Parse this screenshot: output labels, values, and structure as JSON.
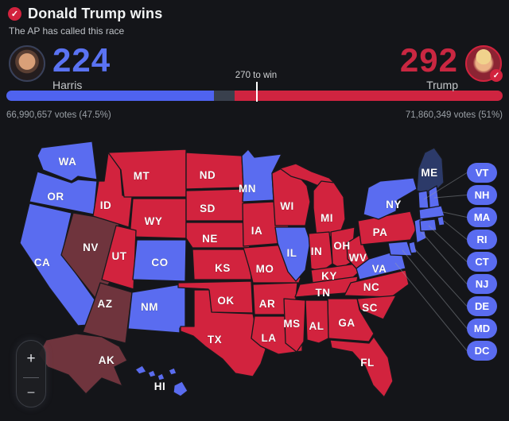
{
  "colors": {
    "background": "#141519",
    "dem": "#5a6cf0",
    "rep": "#d2233e",
    "lean_rep": "#6f343d",
    "lean_dem": "#2c3a69",
    "dem_number": "#5a73f3",
    "rep_number": "#c92741",
    "bar_dem": "#4f63ef",
    "bar_rep": "#cf2440",
    "bar_undecided": "#39404d"
  },
  "header": {
    "title": "Donald Trump wins",
    "subtitle": "The AP has called this race",
    "called_icon": "checkmark"
  },
  "scoreboard": {
    "harris": {
      "name": "Harris",
      "electoral_votes": "224",
      "votes": "66,990,657 votes (47.5%)"
    },
    "trump": {
      "name": "Trump",
      "electoral_votes": "292",
      "votes": "71,860,349 votes (51%)"
    },
    "threshold": {
      "label": "270 to win",
      "marker_pct": 50.3
    },
    "bar": {
      "dem_pct": 41.8,
      "undecided_pct": 4.2
    }
  },
  "map": {
    "states": [
      {
        "id": "WA",
        "label": "WA",
        "party": "dem"
      },
      {
        "id": "OR",
        "label": "OR",
        "party": "dem"
      },
      {
        "id": "CA",
        "label": "CA",
        "party": "dem"
      },
      {
        "id": "NV",
        "label": "NV",
        "party": "lean_rep"
      },
      {
        "id": "ID",
        "label": "ID",
        "party": "rep"
      },
      {
        "id": "MT",
        "label": "MT",
        "party": "rep"
      },
      {
        "id": "WY",
        "label": "WY",
        "party": "rep"
      },
      {
        "id": "UT",
        "label": "UT",
        "party": "rep"
      },
      {
        "id": "CO",
        "label": "CO",
        "party": "dem"
      },
      {
        "id": "AZ",
        "label": "AZ",
        "party": "lean_rep"
      },
      {
        "id": "NM",
        "label": "NM",
        "party": "dem"
      },
      {
        "id": "ND",
        "label": "ND",
        "party": "rep"
      },
      {
        "id": "SD",
        "label": "SD",
        "party": "rep"
      },
      {
        "id": "NE",
        "label": "NE",
        "party": "rep"
      },
      {
        "id": "KS",
        "label": "KS",
        "party": "rep"
      },
      {
        "id": "OK",
        "label": "OK",
        "party": "rep"
      },
      {
        "id": "TX",
        "label": "TX",
        "party": "rep"
      },
      {
        "id": "MN",
        "label": "MN",
        "party": "dem"
      },
      {
        "id": "IA",
        "label": "IA",
        "party": "rep"
      },
      {
        "id": "MO",
        "label": "MO",
        "party": "rep"
      },
      {
        "id": "AR",
        "label": "AR",
        "party": "rep"
      },
      {
        "id": "LA",
        "label": "LA",
        "party": "rep"
      },
      {
        "id": "WI",
        "label": "WI",
        "party": "rep"
      },
      {
        "id": "MI2",
        "label": "",
        "party": "rep"
      },
      {
        "id": "MI",
        "label": "MI",
        "party": "rep"
      },
      {
        "id": "IL",
        "label": "IL",
        "party": "dem"
      },
      {
        "id": "IN",
        "label": "IN",
        "party": "rep"
      },
      {
        "id": "OH",
        "label": "OH",
        "party": "rep"
      },
      {
        "id": "KY",
        "label": "KY",
        "party": "rep"
      },
      {
        "id": "TN",
        "label": "TN",
        "party": "rep"
      },
      {
        "id": "WV",
        "label": "WV",
        "party": "rep"
      },
      {
        "id": "VA",
        "label": "VA",
        "party": "dem"
      },
      {
        "id": "NC",
        "label": "NC",
        "party": "rep"
      },
      {
        "id": "SC",
        "label": "SC",
        "party": "rep"
      },
      {
        "id": "GA",
        "label": "GA",
        "party": "rep"
      },
      {
        "id": "AL",
        "label": "AL",
        "party": "rep"
      },
      {
        "id": "MS",
        "label": "MS",
        "party": "rep"
      },
      {
        "id": "FL",
        "label": "FL",
        "party": "rep"
      },
      {
        "id": "PA",
        "label": "PA",
        "party": "rep"
      },
      {
        "id": "NY",
        "label": "NY",
        "party": "dem"
      },
      {
        "id": "NJ",
        "label": "",
        "party": "dem"
      },
      {
        "id": "ME",
        "label": "ME",
        "party": "lean_dem"
      },
      {
        "id": "VT",
        "label": "",
        "party": "dem"
      },
      {
        "id": "NH",
        "label": "",
        "party": "dem"
      },
      {
        "id": "MA",
        "label": "",
        "party": "dem"
      },
      {
        "id": "RI",
        "label": "",
        "party": "dem"
      },
      {
        "id": "CT",
        "label": "",
        "party": "dem"
      },
      {
        "id": "DE",
        "label": "",
        "party": "dem"
      },
      {
        "id": "MD",
        "label": "",
        "party": "dem"
      },
      {
        "id": "AK",
        "label": "AK",
        "party": "lean_rep"
      },
      {
        "id": "HI",
        "label": "HI",
        "party": "dem"
      }
    ],
    "pills": [
      {
        "id": "VT",
        "label": "VT",
        "party": "dem"
      },
      {
        "id": "NH",
        "label": "NH",
        "party": "dem"
      },
      {
        "id": "MA",
        "label": "MA",
        "party": "dem"
      },
      {
        "id": "RI",
        "label": "RI",
        "party": "dem"
      },
      {
        "id": "CT",
        "label": "CT",
        "party": "dem"
      },
      {
        "id": "NJ",
        "label": "NJ",
        "party": "dem"
      },
      {
        "id": "DE",
        "label": "DE",
        "party": "dem"
      },
      {
        "id": "MD",
        "label": "MD",
        "party": "dem"
      },
      {
        "id": "DC",
        "label": "DC",
        "party": "dem"
      }
    ]
  },
  "zoom_control": {
    "zoom_in": "+",
    "zoom_out": "−"
  }
}
